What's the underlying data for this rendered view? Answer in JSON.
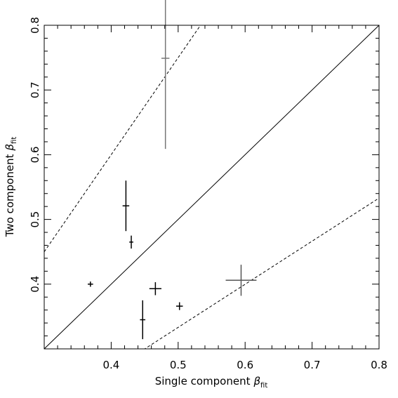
{
  "chart_data": {
    "type": "scatter",
    "title": "",
    "xlabel": "Single component",
    "ylabel": "Two component",
    "axis_symbol": "β",
    "axis_subscript": "fit",
    "xlim": [
      0.3,
      0.8
    ],
    "ylim": [
      0.3,
      0.8
    ],
    "x_ticks": [
      0.4,
      0.5,
      0.6,
      0.7,
      0.8
    ],
    "y_ticks": [
      0.4,
      0.5,
      0.6,
      0.7,
      0.8
    ],
    "x_tick_labels": [
      "0.4",
      "0.5",
      "0.6",
      "0.7",
      "0.8"
    ],
    "y_tick_labels": [
      "0.4",
      "0.5",
      "0.6",
      "0.7",
      "0.8"
    ],
    "minor_step": 0.02,
    "grid": false,
    "series": [
      {
        "type": "errorbar",
        "points": [
          {
            "x": 0.481,
            "y": 0.749,
            "xerr": 0.006,
            "yerr": 0.14,
            "line_color": "#777777"
          },
          {
            "x": 0.422,
            "y": 0.521,
            "xerr": 0.005,
            "yerr": 0.039,
            "line_color": "#000000"
          },
          {
            "x": 0.43,
            "y": 0.465,
            "xerr": 0.003,
            "yerr": 0.01,
            "line_color": "#000000"
          },
          {
            "x": 0.369,
            "y": 0.4,
            "xerr": 0.004,
            "yerr": 0.004,
            "line_color": "#000000"
          },
          {
            "x": 0.466,
            "y": 0.393,
            "xerr": 0.009,
            "yerr": 0.01,
            "line_color": "#000000"
          },
          {
            "x": 0.447,
            "y": 0.345,
            "xerr": 0.004,
            "yerr": 0.03,
            "line_color": "#000000"
          },
          {
            "x": 0.502,
            "y": 0.366,
            "xerr": 0.005,
            "yerr": 0.006,
            "line_color": "#000000"
          },
          {
            "x": 0.594,
            "y": 0.406,
            "xerr": 0.023,
            "yerr": 0.024,
            "line_color": "#555555"
          }
        ]
      }
    ],
    "reference_lines": [
      {
        "style": "solid",
        "points": [
          [
            0.3,
            0.3
          ],
          [
            0.8,
            0.8
          ]
        ]
      },
      {
        "style": "dashed",
        "points": [
          [
            0.3,
            0.45
          ],
          [
            0.8,
            1.2
          ]
        ]
      },
      {
        "style": "dashed",
        "points": [
          [
            0.3,
            0.2
          ],
          [
            0.8,
            0.533
          ]
        ]
      }
    ]
  }
}
